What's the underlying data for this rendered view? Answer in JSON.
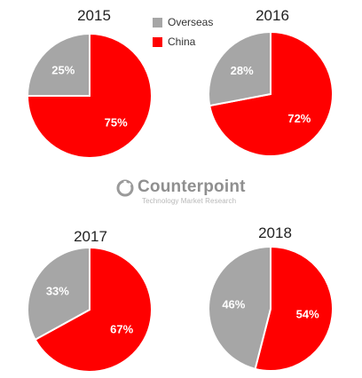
{
  "legend": {
    "items": [
      {
        "label": "Overseas",
        "color": "#a6a6a6"
      },
      {
        "label": "China",
        "color": "#ff0000"
      }
    ]
  },
  "watermark": {
    "name": "Counterpoint",
    "tagline": "Technology Market Research"
  },
  "chart_data": [
    {
      "type": "pie",
      "title": "2015",
      "labels": [
        "Overseas",
        "China"
      ],
      "values": [
        25,
        75
      ],
      "data_labels": [
        "25%",
        "75%"
      ],
      "colors": [
        "#a6a6a6",
        "#ff0000"
      ]
    },
    {
      "type": "pie",
      "title": "2016",
      "labels": [
        "Overseas",
        "China"
      ],
      "values": [
        28,
        72
      ],
      "data_labels": [
        "28%",
        "72%"
      ],
      "colors": [
        "#a6a6a6",
        "#ff0000"
      ]
    },
    {
      "type": "pie",
      "title": "2017",
      "labels": [
        "Overseas",
        "China"
      ],
      "values": [
        33,
        67
      ],
      "data_labels": [
        "33%",
        "67%"
      ],
      "colors": [
        "#a6a6a6",
        "#ff0000"
      ]
    },
    {
      "type": "pie",
      "title": "2018",
      "labels": [
        "Overseas",
        "China"
      ],
      "values": [
        46,
        54
      ],
      "data_labels": [
        "46%",
        "54%"
      ],
      "colors": [
        "#a6a6a6",
        "#ff0000"
      ]
    }
  ]
}
